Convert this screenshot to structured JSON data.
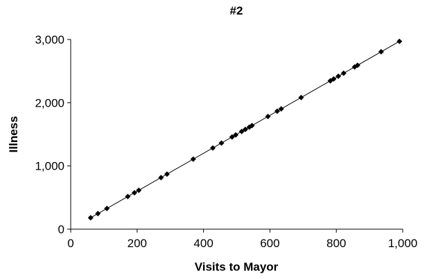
{
  "chart_data": {
    "type": "scatter",
    "title": "#2",
    "xlabel": "Visits to Mayor",
    "ylabel": "Illness",
    "xlim": [
      0,
      1000
    ],
    "ylim": [
      0,
      3000
    ],
    "xticks": [
      "0",
      "200",
      "400",
      "600",
      "800",
      "1,000"
    ],
    "yticks": [
      "0",
      "1,000",
      "2,000",
      "3,000"
    ],
    "xtick_values": [
      0,
      200,
      400,
      600,
      800,
      1000
    ],
    "ytick_values": [
      0,
      1000,
      2000,
      3000
    ],
    "grid": false,
    "trendline": {
      "x": [
        60,
        990
      ],
      "y": [
        180,
        2970
      ]
    },
    "series": [
      {
        "x": [
          60,
          82,
          109,
          172,
          192,
          205,
          272,
          290,
          369,
          428,
          454,
          486,
          497,
          515,
          526,
          538,
          546,
          594,
          622,
          634,
          694,
          782,
          792,
          806,
          822,
          855,
          864,
          935,
          990
        ],
        "y": [
          180,
          246,
          327,
          516,
          576,
          615,
          816,
          870,
          1107,
          1284,
          1362,
          1458,
          1491,
          1545,
          1578,
          1614,
          1638,
          1782,
          1866,
          1902,
          2082,
          2346,
          2376,
          2418,
          2466,
          2565,
          2592,
          2805,
          2970
        ]
      }
    ],
    "marker": "diamond",
    "color": "#000000"
  }
}
